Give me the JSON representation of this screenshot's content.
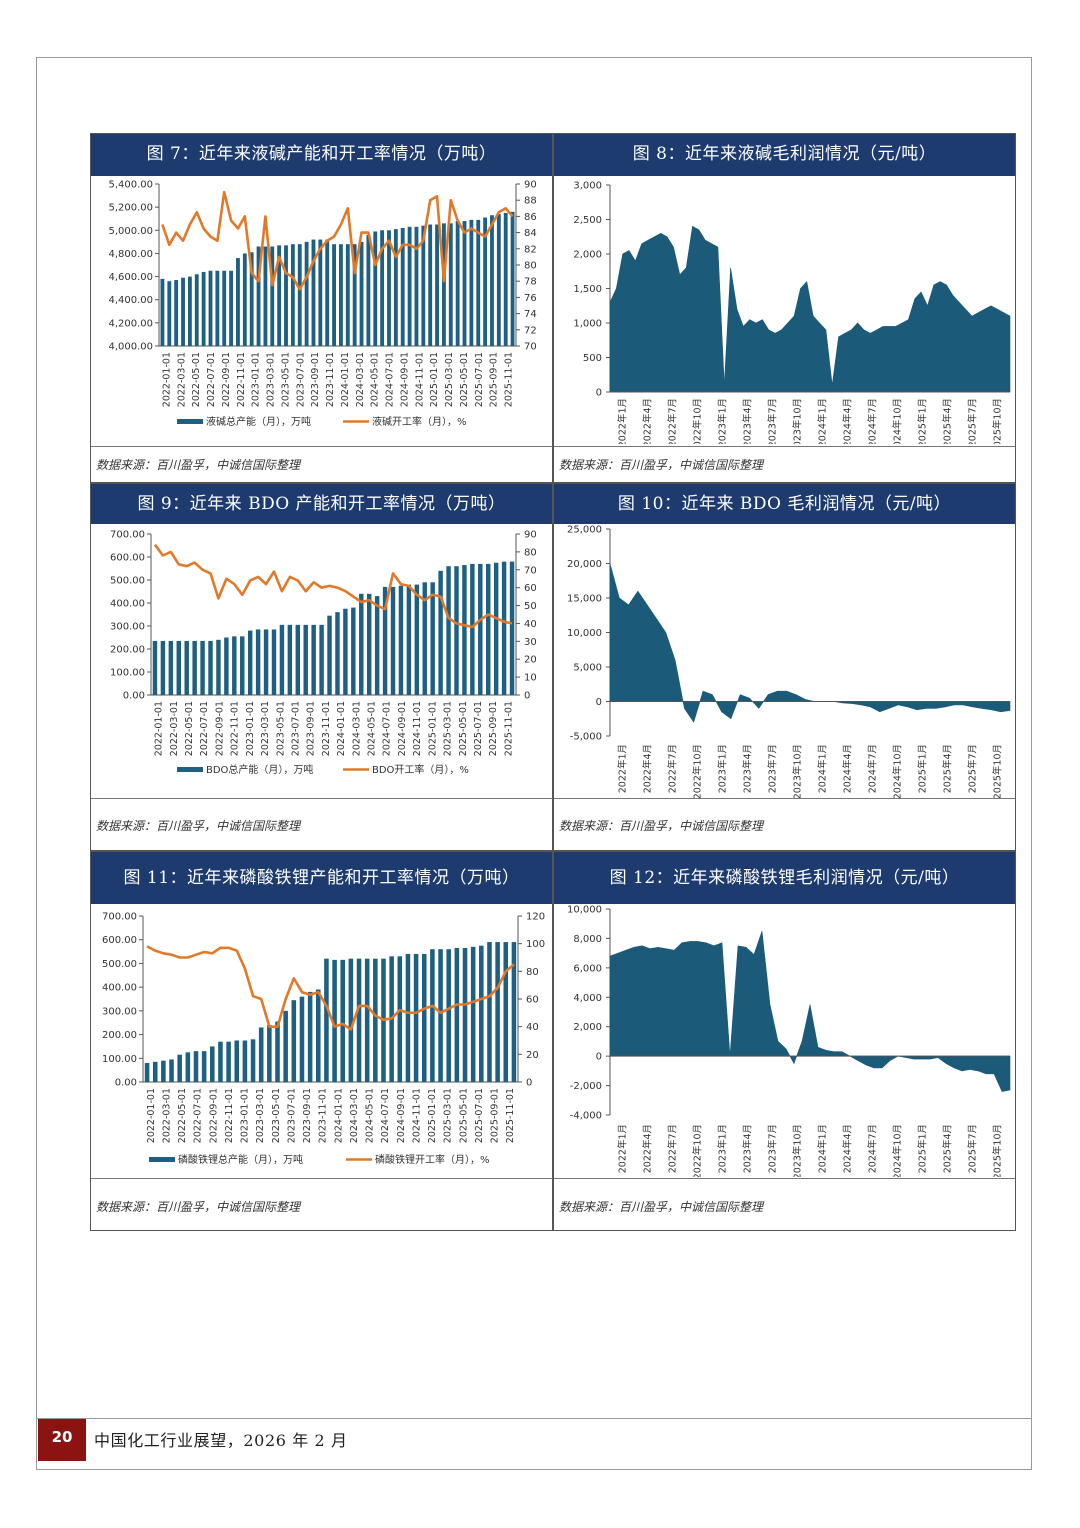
{
  "footer": {
    "page_number": "20",
    "text": "中国化工行业展望，2026 年 2 月"
  },
  "colors": {
    "title_bg": "#1d3b6e",
    "bar": "#1f5f82",
    "line": "#e07a2a",
    "area": "#1b5a79",
    "page_badge": "#8b1412"
  },
  "source_text": "数据来源：百川盈孚，中诚信国际整理",
  "panels": [
    {
      "title": "图 7：近年来液碱产能和开工率情况（万吨）",
      "chart_data": {
        "type": "bar",
        "combo": "bar+line",
        "title": "图 7：近年来液碱产能和开工率情况（万吨）",
        "y_left": {
          "min": 4000,
          "max": 5400,
          "ticks": [
            "5,400.00",
            "5,200.00",
            "5,000.00",
            "4,800.00",
            "4,600.00",
            "4,400.00",
            "4,200.00",
            "4,000.00"
          ]
        },
        "y_right": {
          "min": 70,
          "max": 90,
          "ticks": [
            "90",
            "88",
            "86",
            "84",
            "82",
            "80",
            "78",
            "76",
            "74",
            "72",
            "70"
          ]
        },
        "x_labels": [
          "2022-01-01",
          "2022-03-01",
          "2022-05-01",
          "2022-07-01",
          "2022-09-01",
          "2022-11-01",
          "2023-01-01",
          "2023-03-01",
          "2023-05-01",
          "2023-07-01",
          "2023-09-01",
          "2023-11-01",
          "2024-01-01",
          "2024-03-01",
          "2024-05-01",
          "2024-07-01",
          "2024-09-01",
          "2024-11-01",
          "2025-01-01",
          "2025-03-01",
          "2025-05-01",
          "2025-07-01",
          "2025-09-01",
          "2025-11-01"
        ],
        "series": [
          {
            "name": "液碱总产能（月），万吨",
            "kind": "bar",
            "axis": "left",
            "values": [
              4580,
              4560,
              4570,
              4590,
              4600,
              4620,
              4640,
              4650,
              4650,
              4650,
              4650,
              4760,
              4800,
              4810,
              4860,
              4860,
              4860,
              4870,
              4870,
              4880,
              4880,
              4900,
              4920,
              4920,
              4920,
              4880,
              4880,
              4880,
              4880,
              4900,
              4960,
              4990,
              5000,
              5000,
              5010,
              5020,
              5030,
              5030,
              5040,
              5050,
              5050,
              5060,
              5060,
              5080,
              5080,
              5090,
              5090,
              5110,
              5130,
              5140,
              5150,
              5160
            ]
          },
          {
            "name": "液碱开工率（月），%",
            "kind": "line",
            "axis": "right",
            "values": [
              85,
              82.5,
              84,
              83,
              85,
              86.5,
              84.5,
              83.5,
              83,
              89,
              85.5,
              84.5,
              86,
              79,
              78,
              86,
              77.5,
              81,
              79,
              78.5,
              77,
              78.5,
              80.5,
              82,
              83,
              83.5,
              85,
              87,
              79,
              84,
              84,
              80,
              82,
              83,
              81,
              82.5,
              82.5,
              82,
              83,
              88,
              88.5,
              78,
              88,
              85.5,
              84,
              84.5,
              84,
              83.5,
              85,
              86.5,
              87,
              86
            ]
          }
        ],
        "legend": [
          "液碱总产能（月），万吨",
          "液碱开工率（月），%"
        ]
      }
    },
    {
      "title": "图 8：近年来液碱毛利润情况（元/吨）",
      "chart_data": {
        "type": "area",
        "title": "图 8：近年来液碱毛利润情况（元/吨）",
        "y": {
          "min": 0,
          "max": 3000,
          "ticks": [
            "3,000",
            "2,500",
            "2,000",
            "1,500",
            "1,000",
            "500",
            "0"
          ]
        },
        "x_labels": [
          "2022年1月",
          "2022年4月",
          "2022年7月",
          "2022年10月",
          "2023年1月",
          "2023年4月",
          "2023年7月",
          "2023年10月",
          "2024年1月",
          "2024年4月",
          "2024年7月",
          "2024年10月",
          "2025年1月",
          "2025年4月",
          "2025年7月",
          "2025年10月"
        ],
        "values": [
          1300,
          1500,
          2000,
          2050,
          1900,
          2150,
          2200,
          2250,
          2300,
          2250,
          2100,
          1700,
          1800,
          2400,
          2350,
          2200,
          2150,
          2100,
          100,
          1800,
          1200,
          950,
          1050,
          1000,
          1050,
          900,
          850,
          900,
          1000,
          1100,
          1500,
          1600,
          1100,
          1000,
          900,
          100,
          800,
          850,
          900,
          1000,
          900,
          850,
          900,
          950,
          950,
          950,
          1000,
          1050,
          1350,
          1450,
          1250,
          1550,
          1600,
          1550,
          1400,
          1300,
          1200,
          1100,
          1150,
          1200,
          1250,
          1200,
          1150,
          1100
        ]
      }
    },
    {
      "title": "图 9：近年来 BDO 产能和开工率情况（万吨）",
      "chart_data": {
        "type": "bar",
        "combo": "bar+line",
        "title": "图 9：近年来 BDO 产能和开工率情况（万吨）",
        "y_left": {
          "min": 0,
          "max": 700,
          "ticks": [
            "700.00",
            "600.00",
            "500.00",
            "400.00",
            "300.00",
            "200.00",
            "100.00",
            "0.00"
          ]
        },
        "y_right": {
          "min": 0,
          "max": 90,
          "ticks": [
            "90",
            "80",
            "70",
            "60",
            "50",
            "40",
            "30",
            "20",
            "10",
            "0"
          ]
        },
        "x_labels": [
          "2022-01-01",
          "2022-03-01",
          "2022-05-01",
          "2022-07-01",
          "2022-09-01",
          "2022-11-01",
          "2023-01-01",
          "2023-03-01",
          "2023-05-01",
          "2023-07-01",
          "2023-09-01",
          "2023-11-01",
          "2024-01-01",
          "2024-03-01",
          "2024-05-01",
          "2024-07-01",
          "2024-09-01",
          "2024-11-01",
          "2025-01-01",
          "2025-03-01",
          "2025-05-01",
          "2025-07-01",
          "2025-09-01",
          "2025-11-01"
        ],
        "series": [
          {
            "name": "BDO总产能（月），万吨",
            "kind": "bar",
            "axis": "left",
            "values": [
              235,
              235,
              235,
              235,
              235,
              235,
              235,
              235,
              240,
              250,
              255,
              255,
              280,
              285,
              285,
              285,
              305,
              305,
              305,
              305,
              305,
              305,
              345,
              360,
              375,
              380,
              440,
              440,
              430,
              470,
              470,
              475,
              480,
              480,
              490,
              490,
              540,
              560,
              560,
              565,
              570,
              570,
              570,
              575,
              580,
              580
            ]
          },
          {
            "name": "BDO开工率（月），%",
            "kind": "line",
            "axis": "right",
            "values": [
              84,
              78,
              80,
              73,
              72,
              74,
              70,
              68,
              54,
              65,
              62,
              56,
              64,
              66,
              62,
              69,
              58,
              66,
              64,
              58,
              63,
              60,
              61,
              60,
              58,
              55,
              52,
              53,
              50,
              48,
              68,
              62,
              61,
              56,
              53,
              56,
              55,
              43,
              40,
              39,
              38,
              42,
              45,
              43,
              41,
              40
            ]
          }
        ],
        "legend": [
          "BDO总产能（月），万吨",
          "BDO开工率（月），%"
        ]
      }
    },
    {
      "title": "图 10：近年来 BDO 毛利润情况（元/吨）",
      "chart_data": {
        "type": "area",
        "title": "图 10：近年来 BDO 毛利润情况（元/吨）",
        "y": {
          "min": -5000,
          "max": 25000,
          "ticks": [
            "25,000",
            "20,000",
            "15,000",
            "10,000",
            "5,000",
            "0",
            "-5,000"
          ]
        },
        "x_labels": [
          "2022年1月",
          "2022年4月",
          "2022年7月",
          "2022年10月",
          "2023年1月",
          "2023年4月",
          "2023年7月",
          "2023年10月",
          "2024年1月",
          "2024年4月",
          "2024年7月",
          "2024年10月",
          "2025年1月",
          "2025年4月",
          "2025年7月",
          "2025年10月"
        ],
        "values": [
          20000,
          15000,
          14000,
          16000,
          14000,
          12000,
          10000,
          6000,
          -1000,
          -3000,
          1500,
          1000,
          -1500,
          -2500,
          1000,
          500,
          -1000,
          1000,
          1500,
          1500,
          1000,
          300,
          0,
          0,
          0,
          -200,
          -300,
          -500,
          -800,
          -1500,
          -1000,
          -500,
          -800,
          -1200,
          -1000,
          -1000,
          -800,
          -500,
          -500,
          -800,
          -1000,
          -1200,
          -1500,
          -1300
        ]
      }
    },
    {
      "title": "图 11：近年来磷酸铁锂产能和开工率情况（万吨）",
      "chart_data": {
        "type": "bar",
        "combo": "bar+line",
        "title": "图 11：近年来磷酸铁锂产能和开工率情况（万吨）",
        "y_left": {
          "min": 0,
          "max": 700,
          "ticks": [
            "700.00",
            "600.00",
            "500.00",
            "400.00",
            "300.00",
            "200.00",
            "100.00",
            "0.00"
          ]
        },
        "y_right": {
          "min": 0,
          "max": 120,
          "ticks": [
            "120",
            "100",
            "80",
            "60",
            "40",
            "20",
            "0"
          ]
        },
        "x_labels": [
          "2022-01-01",
          "2022-03-01",
          "2022-05-01",
          "2022-07-01",
          "2022-09-01",
          "2022-11-01",
          "2023-01-01",
          "2023-03-01",
          "2023-05-01",
          "2023-07-01",
          "2023-09-01",
          "2023-11-01",
          "2024-01-01",
          "2024-03-01",
          "2024-05-01",
          "2024-07-01",
          "2024-09-01",
          "2024-11-01",
          "2025-01-01",
          "2025-03-01",
          "2025-05-01",
          "2025-07-01",
          "2025-09-01",
          "2025-11-01"
        ],
        "series": [
          {
            "name": "磷酸铁锂总产能（月），万吨",
            "kind": "bar",
            "axis": "left",
            "values": [
              80,
              85,
              90,
              95,
              115,
              125,
              130,
              130,
              150,
              170,
              170,
              175,
              175,
              180,
              230,
              240,
              255,
              300,
              345,
              360,
              380,
              390,
              520,
              515,
              515,
              520,
              520,
              520,
              520,
              520,
              530,
              530,
              540,
              540,
              540,
              560,
              560,
              560,
              565,
              565,
              570,
              575,
              590,
              590,
              590,
              590
            ]
          },
          {
            "name": "磷酸铁锂开工率（月），%",
            "kind": "line",
            "axis": "right",
            "values": [
              98,
              95,
              93,
              92,
              90,
              90,
              92,
              94,
              93,
              97,
              97,
              95,
              82,
              62,
              60,
              40,
              40,
              60,
              75,
              65,
              63,
              65,
              55,
              40,
              42,
              38,
              55,
              55,
              48,
              45,
              46,
              52,
              50,
              50,
              53,
              55,
              50,
              53,
              56,
              56,
              58,
              60,
              62,
              68,
              80,
              85
            ]
          }
        ],
        "legend": [
          "磷酸铁锂总产能（月），万吨",
          "磷酸铁锂开工率（月），%"
        ]
      }
    },
    {
      "title": "图 12：近年来磷酸铁锂毛利润情况（元/吨）",
      "chart_data": {
        "type": "area",
        "title": "图 12：近年来磷酸铁锂毛利润情况（元/吨）",
        "y": {
          "min": -4000,
          "max": 10000,
          "ticks": [
            "10,000",
            "8,000",
            "6,000",
            "4,000",
            "2,000",
            "0",
            "-2,000",
            "-4,000"
          ]
        },
        "x_labels": [
          "2022年1月",
          "2022年4月",
          "2022年7月",
          "2022年10月",
          "2023年1月",
          "2023年4月",
          "2023年7月",
          "2023年10月",
          "2024年1月",
          "2024年4月",
          "2024年7月",
          "2024年10月",
          "2025年1月",
          "2025年4月",
          "2025年7月",
          "2025年10月"
        ],
        "values": [
          6800,
          7000,
          7200,
          7400,
          7500,
          7300,
          7400,
          7300,
          7200,
          7700,
          7800,
          7800,
          7700,
          7500,
          7700,
          0,
          7500,
          7400,
          6900,
          8500,
          3500,
          1000,
          500,
          -500,
          1000,
          3500,
          600,
          400,
          300,
          300,
          0,
          -300,
          -600,
          -800,
          -800,
          -300,
          0,
          -100,
          -200,
          -200,
          -200,
          -100,
          -500,
          -800,
          -1000,
          -900,
          -1000,
          -1200,
          -1200,
          -2400,
          -2300
        ]
      }
    }
  ]
}
